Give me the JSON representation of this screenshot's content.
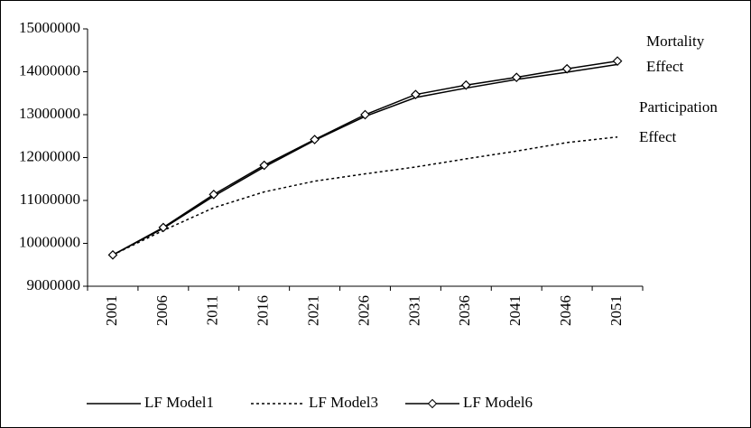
{
  "chart_data": {
    "type": "line",
    "categories": [
      "2001",
      "2006",
      "2011",
      "2016",
      "2021",
      "2026",
      "2031",
      "2036",
      "2041",
      "2046",
      "2051"
    ],
    "series": [
      {
        "name": "LF Model1",
        "color": "#000000",
        "style": "solid",
        "marker": null,
        "values": [
          9730000,
          10350000,
          11100000,
          11780000,
          12400000,
          12960000,
          13400000,
          13620000,
          13820000,
          13990000,
          14170000
        ]
      },
      {
        "name": "LF Model3",
        "color": "#000000",
        "style": "dashed",
        "marker": null,
        "values": [
          9730000,
          10300000,
          10830000,
          11200000,
          11450000,
          11620000,
          11780000,
          11970000,
          12150000,
          12350000,
          12480000
        ]
      },
      {
        "name": "LF Model6",
        "color": "#000000",
        "style": "solid",
        "marker": "diamond",
        "values": [
          9730000,
          10370000,
          11140000,
          11820000,
          12420000,
          13000000,
          13470000,
          13690000,
          13870000,
          14070000,
          14250000
        ]
      }
    ],
    "ylim": [
      9000000,
      15000000
    ],
    "yticks": [
      9000000,
      10000000,
      11000000,
      12000000,
      13000000,
      14000000,
      15000000
    ],
    "annotations": [
      [
        "Mortality",
        "Effect"
      ],
      [
        "Participation",
        "Effect"
      ]
    ],
    "legend": "bottom"
  }
}
